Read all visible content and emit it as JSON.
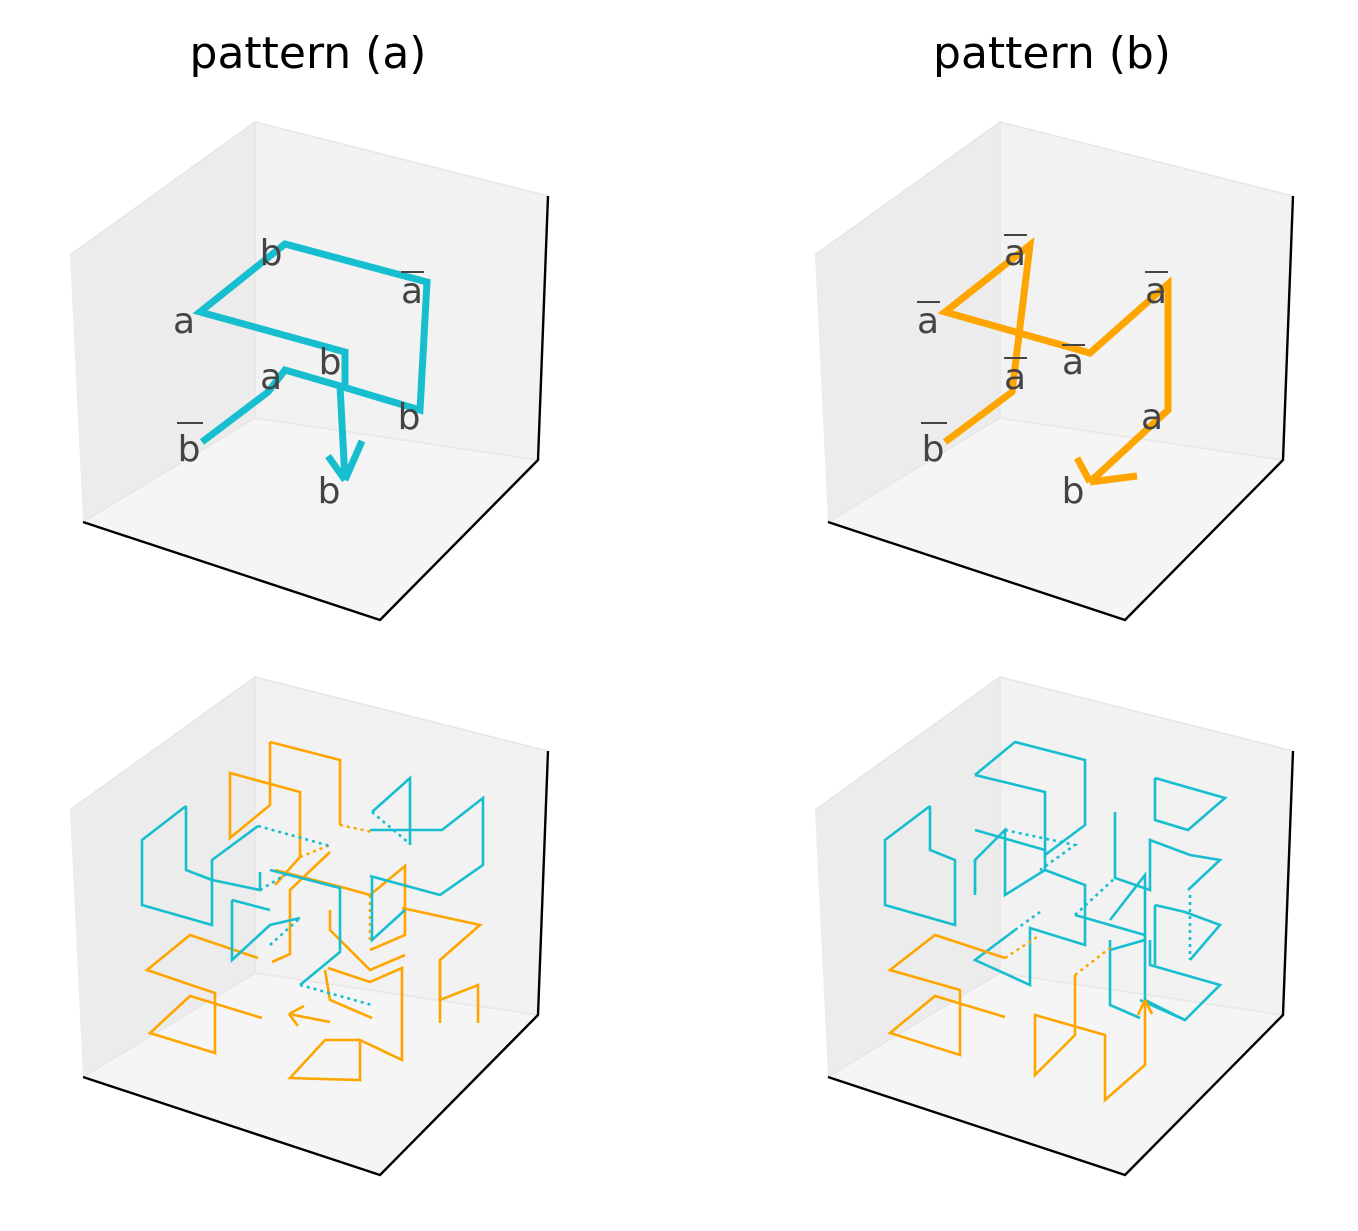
{
  "colors": {
    "cyan": "#17becf",
    "orange": "#ffa500"
  },
  "panels": [
    {
      "id": "top-left",
      "title": "pattern (a)",
      "labels": [
        {
          "text": "b",
          "bar": false
        },
        {
          "text": "a",
          "bar": true
        },
        {
          "text": "a",
          "bar": false
        },
        {
          "text": "b",
          "bar": false
        },
        {
          "text": "a",
          "bar": false
        },
        {
          "text": "b",
          "bar": false
        },
        {
          "text": "b",
          "bar": true
        },
        {
          "text": "b",
          "bar": false
        }
      ]
    },
    {
      "id": "top-right",
      "title": "pattern (b)",
      "labels": [
        {
          "text": "a",
          "bar": true
        },
        {
          "text": "a",
          "bar": true
        },
        {
          "text": "a",
          "bar": true
        },
        {
          "text": "a",
          "bar": true
        },
        {
          "text": "a",
          "bar": true
        },
        {
          "text": "a",
          "bar": false
        },
        {
          "text": "b",
          "bar": true
        },
        {
          "text": "b",
          "bar": false
        }
      ]
    },
    {
      "id": "bottom-left",
      "title": "",
      "labels": []
    },
    {
      "id": "bottom-right",
      "title": "",
      "labels": []
    }
  ]
}
